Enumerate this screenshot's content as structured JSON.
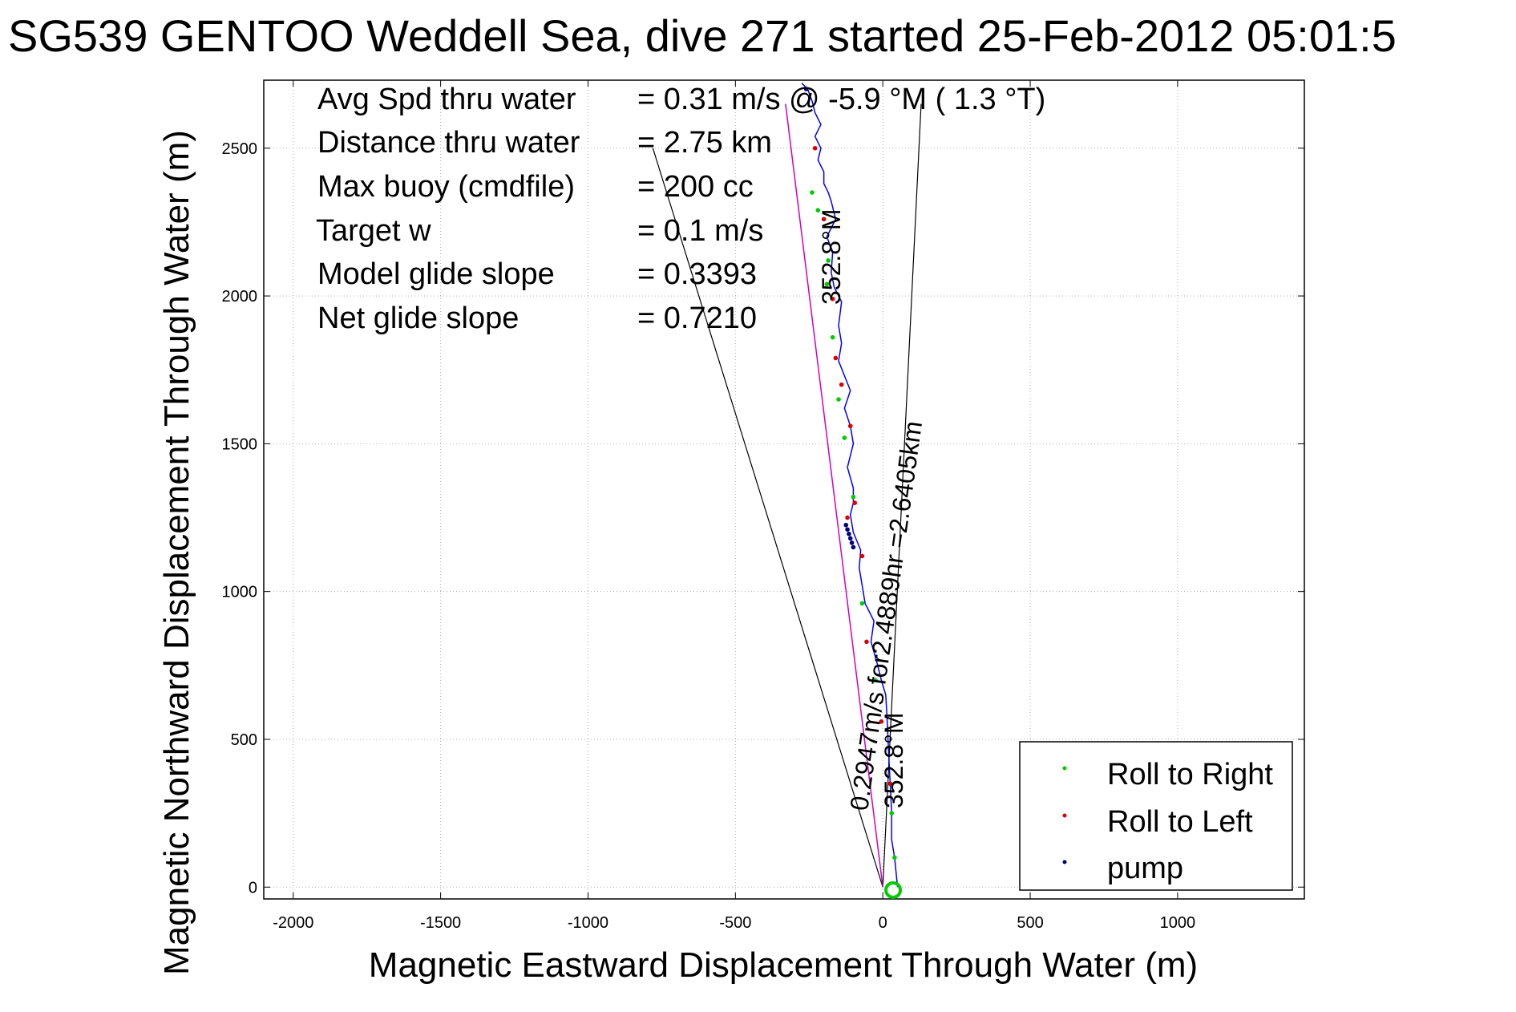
{
  "chart_data": {
    "type": "line",
    "title": "SG539 GENTOO Weddell Sea, dive 271 started 25-Feb-2012 05:01:5",
    "xlabel": "Magnetic Eastward Displacement Through Water (m)",
    "ylabel": "Magnetic Northward Displacement Through Water (m)",
    "xlim": [
      -2100,
      1430
    ],
    "ylim": [
      -40,
      2730
    ],
    "xticks": [
      -2000,
      -1500,
      -1000,
      -500,
      0,
      500,
      1000
    ],
    "yticks": [
      0,
      500,
      1000,
      1500,
      2000,
      2500
    ],
    "grid": true,
    "legend_position": "bottom-right",
    "info_lines": [
      {
        "label": "Avg Spd thru water",
        "value": "=  0.31 m/s @  -5.9 °M (  1.3 °T)"
      },
      {
        "label": "Distance thru water",
        "value": "=  2.75 km"
      },
      {
        "label": "Max buoy (cmdfile)",
        "value": "= 200 cc"
      },
      {
        "label": "Target w",
        "value": "= 0.1 m/s"
      },
      {
        "label": "Model glide slope",
        "value": "= 0.3393"
      },
      {
        "label": "Net glide slope",
        "value": "= 0.7210"
      }
    ],
    "annotations": [
      {
        "text": "352.8°M",
        "kind": "heading-top"
      },
      {
        "text": "0.2947m/s for2.4889hr =2.6405km",
        "kind": "leg-summary"
      },
      {
        "text": "352.8°M",
        "kind": "heading-bottom"
      }
    ],
    "legend": [
      {
        "label": "Roll to Right",
        "color": "#00cc00"
      },
      {
        "label": "Roll to Left",
        "color": "#dd0000"
      },
      {
        "label": "pump",
        "color": "#000080"
      }
    ],
    "track": {
      "name": "track",
      "color": "#0000ff",
      "x": [
        50,
        45,
        40,
        30,
        30,
        25,
        20,
        15,
        10,
        -5,
        -20,
        -40,
        -30,
        -60,
        -70,
        -80,
        -75,
        -100,
        -110,
        -100,
        -100,
        -120,
        -100,
        -110,
        -130,
        -110,
        -130,
        -150,
        -140,
        -150,
        -140,
        -165,
        -175,
        -170,
        -190,
        -160,
        -175,
        -185,
        -200,
        -200,
        -220,
        -210,
        -230,
        -210,
        -230,
        -240,
        -255,
        -275
      ],
      "y": [
        0,
        50,
        100,
        160,
        250,
        350,
        450,
        560,
        650,
        700,
        760,
        830,
        900,
        960,
        1020,
        1080,
        1140,
        1200,
        1260,
        1300,
        1350,
        1420,
        1500,
        1560,
        1620,
        1680,
        1730,
        1780,
        1840,
        1900,
        1980,
        2030,
        2080,
        2150,
        2200,
        2260,
        2320,
        2350,
        2380,
        2420,
        2460,
        2500,
        2540,
        2580,
        2620,
        2660,
        2700,
        2720
      ]
    },
    "roll_right_points": {
      "x": [
        40,
        30,
        -25,
        -70,
        -100,
        -130,
        -150,
        -170,
        -190,
        -185,
        -220,
        -240
      ],
      "y": [
        100,
        250,
        700,
        960,
        1320,
        1520,
        1650,
        1860,
        2040,
        2120,
        2290,
        2350
      ],
      "color": "#00cc00"
    },
    "roll_left_points": {
      "x": [
        25,
        -5,
        -55,
        -70,
        -120,
        -95,
        -110,
        -140,
        -160,
        -170,
        -200,
        -230
      ],
      "y": [
        350,
        560,
        830,
        1120,
        1250,
        1300,
        1560,
        1700,
        1790,
        1990,
        2260,
        2500
      ],
      "color": "#dd0000"
    },
    "pump_points": {
      "x": [
        -100,
        -105,
        -110,
        -115,
        -120,
        -125,
        -260
      ],
      "y": [
        1150,
        1165,
        1180,
        1195,
        1210,
        1225,
        2700
      ],
      "color": "#000080"
    },
    "surface_circle": {
      "x": 35,
      "y": -10,
      "color": "#00cc00"
    },
    "heading_line": {
      "x": [
        0,
        -330
      ],
      "y": [
        0,
        2650
      ],
      "color": "#cc00cc"
    },
    "wedge_lines": [
      {
        "x": [
          0,
          -780
        ],
        "y": [
          0,
          2500
        ]
      },
      {
        "x": [
          0,
          130
        ],
        "y": [
          0,
          2650
        ]
      }
    ]
  }
}
